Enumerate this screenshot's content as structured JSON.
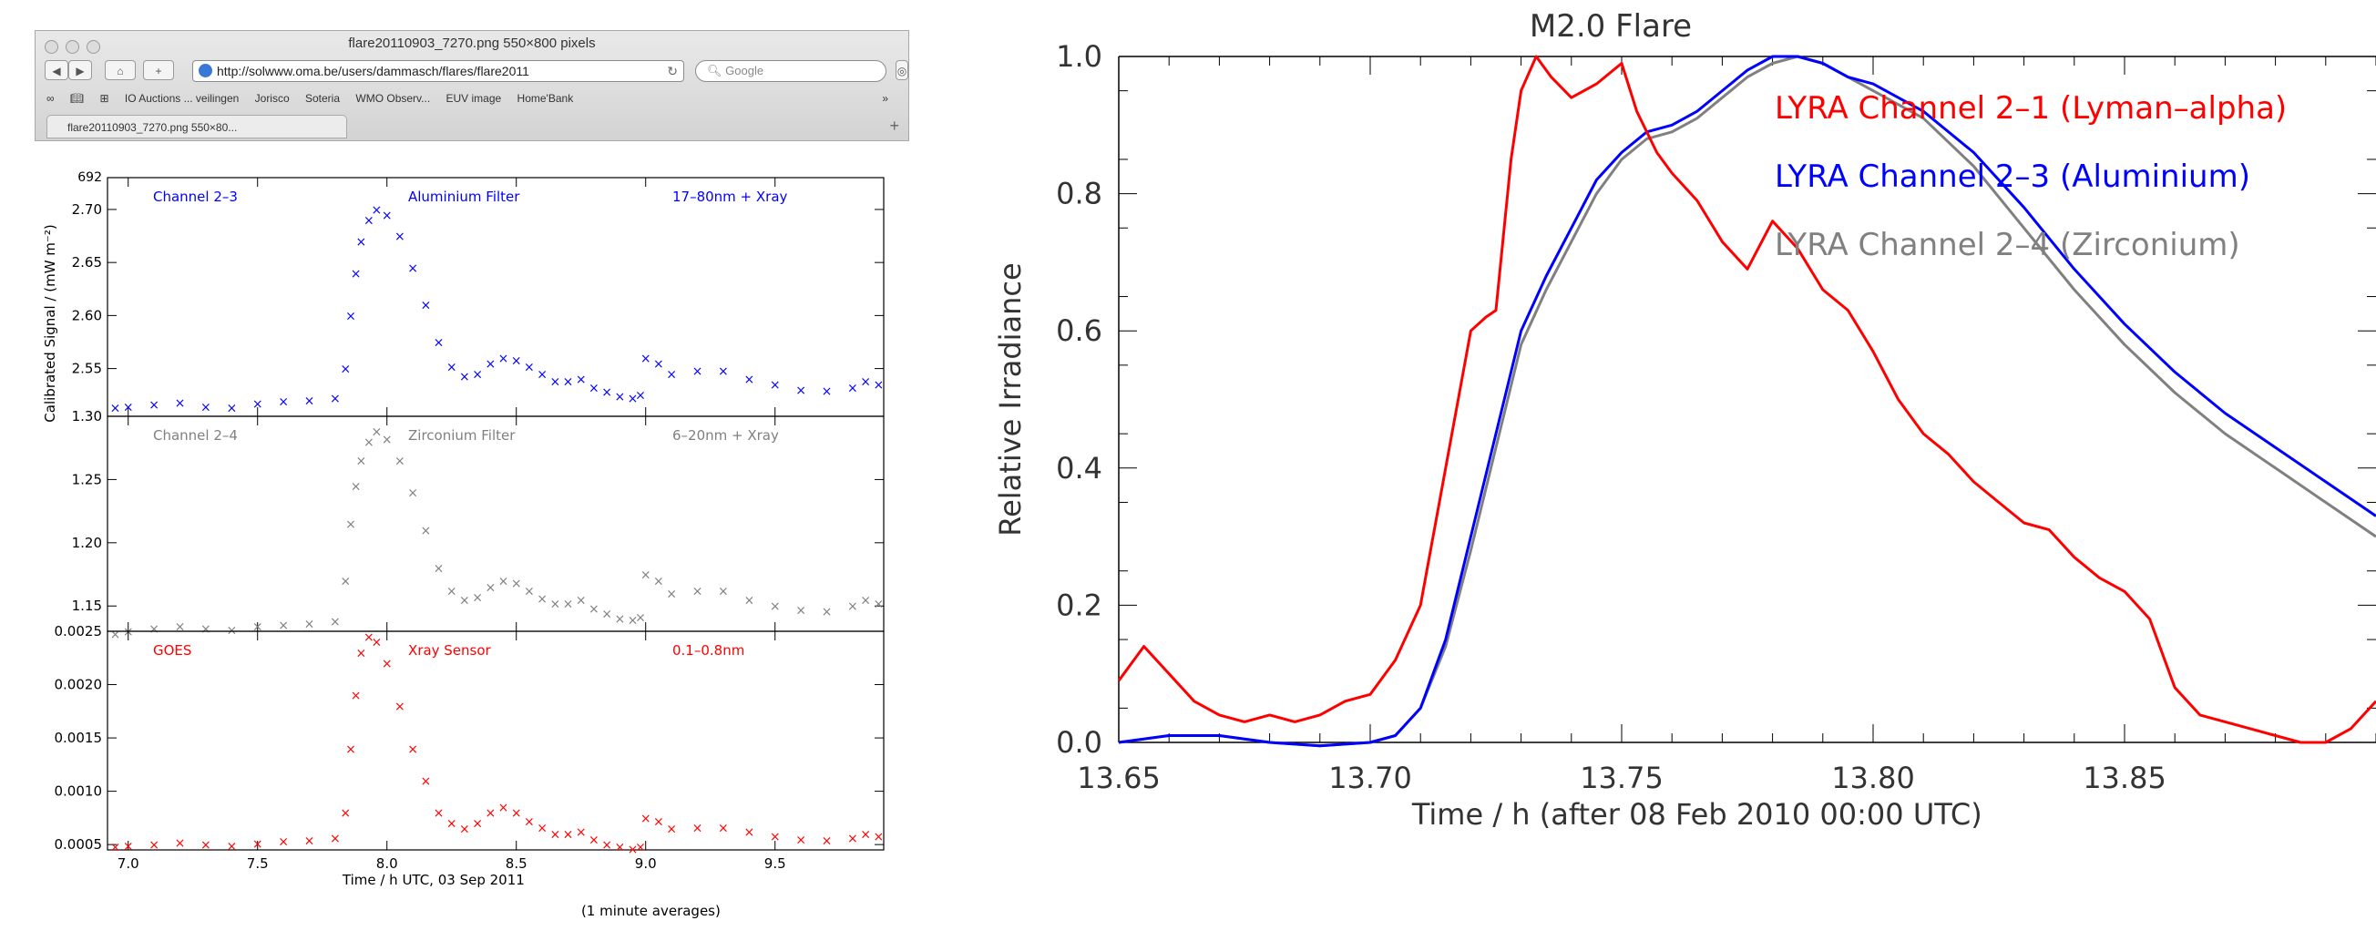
{
  "browser": {
    "window_title": "flare20110903_7270.png 550×800 pixels",
    "url": "http://solwww.oma.be/users/dammasch/flares/flare2011",
    "search_placeholder": "Google",
    "bookmarks": [
      "IO Auctions ... veilingen",
      "Jorisco",
      "Soteria",
      "WMO Observ...",
      "EUV image",
      "Home'Bank"
    ],
    "tab_label": "flare20110903_7270.png 550×80..."
  },
  "chart_data": [
    {
      "type": "scatter",
      "panel": "top",
      "labels": [
        "Channel 2–3",
        "Aluminium Filter",
        "17–80nm + Xray"
      ],
      "color": "#0000ff",
      "ylabel": "Calibrated Signal / (mW m⁻²)",
      "ylim": [
        2.505,
        2.73
      ],
      "yticks": [
        2.55,
        2.6,
        2.65,
        2.7
      ],
      "ytick_labels": [
        "2.55",
        "2.60",
        "2.65",
        "2.70"
      ],
      "ytop_label": "692",
      "xlim": [
        6.92,
        9.92
      ],
      "x": [
        6.95,
        7.0,
        7.1,
        7.2,
        7.3,
        7.4,
        7.5,
        7.6,
        7.7,
        7.8,
        7.84,
        7.86,
        7.88,
        7.9,
        7.93,
        7.96,
        8.0,
        8.05,
        8.1,
        8.15,
        8.2,
        8.25,
        8.3,
        8.35,
        8.4,
        8.45,
        8.5,
        8.55,
        8.6,
        8.65,
        8.7,
        8.75,
        8.8,
        8.85,
        8.9,
        8.95,
        8.98,
        9.0,
        9.05,
        9.1,
        9.2,
        9.3,
        9.4,
        9.5,
        9.6,
        9.7,
        9.8,
        9.85,
        9.9
      ],
      "y": [
        2.513,
        2.514,
        2.516,
        2.518,
        2.514,
        2.513,
        2.517,
        2.519,
        2.52,
        2.522,
        2.55,
        2.6,
        2.64,
        2.67,
        2.69,
        2.7,
        2.695,
        2.675,
        2.645,
        2.61,
        2.575,
        2.552,
        2.543,
        2.545,
        2.555,
        2.56,
        2.558,
        2.552,
        2.545,
        2.538,
        2.538,
        2.54,
        2.532,
        2.528,
        2.524,
        2.522,
        2.525,
        2.56,
        2.555,
        2.545,
        2.548,
        2.548,
        2.54,
        2.535,
        2.53,
        2.529,
        2.532,
        2.538,
        2.535
      ]
    },
    {
      "type": "scatter",
      "panel": "middle",
      "labels": [
        "Channel 2–4",
        "Zirconium Filter",
        "6–20nm + Xray"
      ],
      "color": "#808080",
      "ylim": [
        1.13,
        1.3
      ],
      "yticks": [
        1.15,
        1.2,
        1.25,
        1.3
      ],
      "ytick_labels": [
        "1.15",
        "1.20",
        "1.25",
        "1.30"
      ],
      "xlim": [
        6.92,
        9.92
      ],
      "x": [
        6.95,
        7.0,
        7.1,
        7.2,
        7.3,
        7.4,
        7.5,
        7.6,
        7.7,
        7.8,
        7.84,
        7.86,
        7.88,
        7.9,
        7.93,
        7.96,
        8.0,
        8.05,
        8.1,
        8.15,
        8.2,
        8.25,
        8.3,
        8.35,
        8.4,
        8.45,
        8.5,
        8.55,
        8.6,
        8.65,
        8.7,
        8.75,
        8.8,
        8.85,
        8.9,
        8.95,
        8.98,
        9.0,
        9.05,
        9.1,
        9.2,
        9.3,
        9.4,
        9.5,
        9.6,
        9.7,
        9.8,
        9.85,
        9.9
      ],
      "y": [
        1.128,
        1.13,
        1.132,
        1.134,
        1.132,
        1.131,
        1.134,
        1.135,
        1.136,
        1.138,
        1.17,
        1.215,
        1.245,
        1.265,
        1.28,
        1.288,
        1.282,
        1.265,
        1.24,
        1.21,
        1.18,
        1.162,
        1.155,
        1.157,
        1.165,
        1.17,
        1.168,
        1.162,
        1.156,
        1.152,
        1.152,
        1.155,
        1.148,
        1.144,
        1.14,
        1.139,
        1.141,
        1.175,
        1.17,
        1.16,
        1.162,
        1.162,
        1.155,
        1.15,
        1.147,
        1.146,
        1.15,
        1.155,
        1.152
      ]
    },
    {
      "type": "scatter",
      "panel": "bottom",
      "labels": [
        "GOES",
        "Xray Sensor",
        "0.1–0.8nm"
      ],
      "color": "#ff0000",
      "ylim": [
        0.00045,
        0.0025
      ],
      "yticks": [
        0.0005,
        0.001,
        0.0015,
        0.002,
        0.0025
      ],
      "ytick_labels": [
        "0.0005",
        "0.0010",
        "0.0015",
        "0.0020",
        "0.0025"
      ],
      "xlim": [
        6.92,
        9.92
      ],
      "xticks": [
        7.0,
        7.5,
        8.0,
        8.5,
        9.0,
        9.5
      ],
      "xtick_labels": [
        "7.0",
        "7.5",
        "8.0",
        "8.5",
        "9.0",
        "9.5"
      ],
      "xlabel": "Time / h UTC, 03 Sep 2011",
      "x": [
        6.95,
        7.0,
        7.1,
        7.2,
        7.3,
        7.4,
        7.5,
        7.6,
        7.7,
        7.8,
        7.84,
        7.86,
        7.88,
        7.9,
        7.93,
        7.96,
        8.0,
        8.05,
        8.1,
        8.15,
        8.2,
        8.25,
        8.3,
        8.35,
        8.4,
        8.45,
        8.5,
        8.55,
        8.6,
        8.65,
        8.7,
        8.75,
        8.8,
        8.85,
        8.9,
        8.95,
        8.98,
        9.0,
        9.05,
        9.1,
        9.2,
        9.3,
        9.4,
        9.5,
        9.6,
        9.7,
        9.8,
        9.85,
        9.9
      ],
      "y": [
        0.00048,
        0.00049,
        0.0005,
        0.00052,
        0.0005,
        0.00049,
        0.00051,
        0.00053,
        0.00054,
        0.00056,
        0.0008,
        0.0014,
        0.0019,
        0.0023,
        0.00245,
        0.0024,
        0.0022,
        0.0018,
        0.0014,
        0.0011,
        0.0008,
        0.0007,
        0.00065,
        0.0007,
        0.0008,
        0.00085,
        0.0008,
        0.00072,
        0.00066,
        0.0006,
        0.0006,
        0.00062,
        0.00055,
        0.0005,
        0.00048,
        0.00046,
        0.00048,
        0.00075,
        0.00072,
        0.00065,
        0.00066,
        0.00066,
        0.00062,
        0.00058,
        0.00055,
        0.00054,
        0.00056,
        0.0006,
        0.00058
      ]
    },
    {
      "type": "line",
      "title": "M2.0 Flare",
      "xlabel": "Time / h (after 08 Feb 2010  00:00 UTC)",
      "ylabel": "Relative Irradiance",
      "xlim": [
        13.65,
        13.9
      ],
      "ylim": [
        0.0,
        1.0
      ],
      "xticks": [
        13.65,
        13.7,
        13.75,
        13.8,
        13.85
      ],
      "xtick_labels": [
        "13.65",
        "13.70",
        "13.75",
        "13.80",
        "13.85"
      ],
      "yticks": [
        0.0,
        0.2,
        0.4,
        0.6,
        0.8,
        1.0
      ],
      "ytick_labels": [
        "0.0",
        "0.2",
        "0.4",
        "0.6",
        "0.8",
        "1.0"
      ],
      "series": [
        {
          "name": "LYRA Channel 2–1 (Lyman–alpha)",
          "color": "#ff0000",
          "x": [
            13.65,
            13.655,
            13.66,
            13.665,
            13.67,
            13.675,
            13.68,
            13.685,
            13.69,
            13.695,
            13.7,
            13.705,
            13.71,
            13.715,
            13.72,
            13.723,
            13.725,
            13.728,
            13.73,
            13.733,
            13.736,
            13.74,
            13.745,
            13.75,
            13.753,
            13.757,
            13.76,
            13.765,
            13.77,
            13.775,
            13.78,
            13.785,
            13.79,
            13.795,
            13.8,
            13.805,
            13.81,
            13.815,
            13.82,
            13.825,
            13.83,
            13.835,
            13.84,
            13.845,
            13.85,
            13.855,
            13.86,
            13.865,
            13.87,
            13.875,
            13.88,
            13.885,
            13.89,
            13.895,
            13.9
          ],
          "y": [
            0.09,
            0.14,
            0.1,
            0.06,
            0.04,
            0.03,
            0.04,
            0.03,
            0.04,
            0.06,
            0.07,
            0.12,
            0.2,
            0.4,
            0.6,
            0.62,
            0.63,
            0.85,
            0.95,
            1.0,
            0.97,
            0.94,
            0.96,
            0.99,
            0.92,
            0.86,
            0.83,
            0.79,
            0.73,
            0.69,
            0.76,
            0.72,
            0.66,
            0.63,
            0.57,
            0.5,
            0.45,
            0.42,
            0.38,
            0.35,
            0.32,
            0.31,
            0.27,
            0.24,
            0.22,
            0.18,
            0.08,
            0.04,
            0.03,
            0.02,
            0.01,
            0.0,
            0.0,
            0.02,
            0.06
          ]
        },
        {
          "name": "LYRA Channel 2–3 (Aluminium)",
          "color": "#0000ff",
          "x": [
            13.65,
            13.66,
            13.67,
            13.68,
            13.69,
            13.7,
            13.705,
            13.71,
            13.715,
            13.72,
            13.725,
            13.73,
            13.735,
            13.74,
            13.745,
            13.75,
            13.755,
            13.76,
            13.765,
            13.77,
            13.775,
            13.78,
            13.785,
            13.79,
            13.795,
            13.8,
            13.81,
            13.82,
            13.83,
            13.84,
            13.85,
            13.86,
            13.87,
            13.88,
            13.89,
            13.9
          ],
          "y": [
            0.0,
            0.01,
            0.01,
            0.0,
            -0.005,
            0.0,
            0.01,
            0.05,
            0.15,
            0.3,
            0.45,
            0.6,
            0.68,
            0.75,
            0.82,
            0.86,
            0.89,
            0.9,
            0.92,
            0.95,
            0.98,
            1.0,
            1.0,
            0.99,
            0.97,
            0.96,
            0.92,
            0.86,
            0.78,
            0.69,
            0.61,
            0.54,
            0.48,
            0.43,
            0.38,
            0.33
          ]
        },
        {
          "name": "LYRA Channel 2–4 (Zirconium)",
          "color": "#808080",
          "x": [
            13.65,
            13.66,
            13.67,
            13.68,
            13.69,
            13.7,
            13.705,
            13.71,
            13.715,
            13.72,
            13.725,
            13.73,
            13.735,
            13.74,
            13.745,
            13.75,
            13.755,
            13.76,
            13.765,
            13.77,
            13.775,
            13.78,
            13.785,
            13.79,
            13.795,
            13.8,
            13.81,
            13.82,
            13.83,
            13.84,
            13.85,
            13.86,
            13.87,
            13.88,
            13.89,
            13.9
          ],
          "y": [
            0.0,
            0.01,
            0.01,
            0.0,
            -0.005,
            0.0,
            0.01,
            0.05,
            0.14,
            0.28,
            0.43,
            0.58,
            0.66,
            0.73,
            0.8,
            0.85,
            0.88,
            0.89,
            0.91,
            0.94,
            0.97,
            0.99,
            1.0,
            0.99,
            0.97,
            0.95,
            0.91,
            0.84,
            0.75,
            0.66,
            0.58,
            0.51,
            0.45,
            0.4,
            0.35,
            0.3
          ]
        }
      ]
    }
  ],
  "footnote": "(1 minute averages)"
}
